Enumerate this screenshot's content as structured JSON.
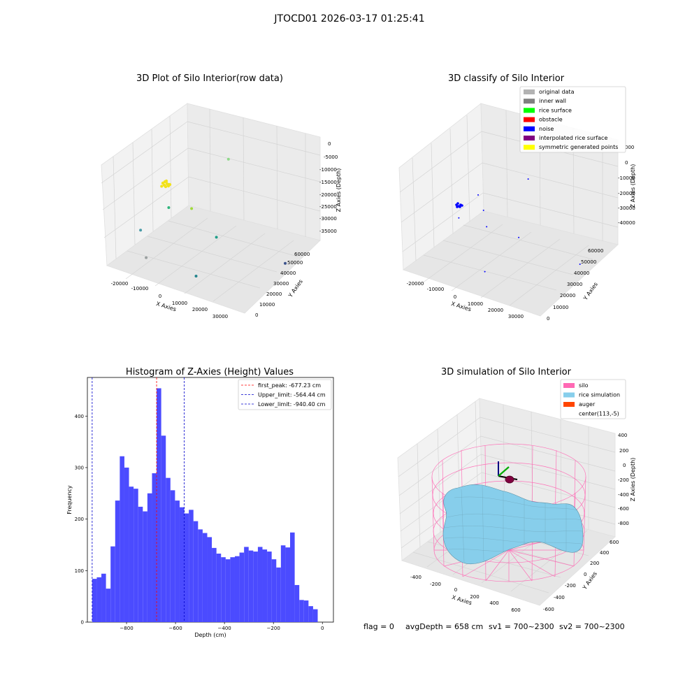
{
  "figure": {
    "suptitle": "JTOCD01 2026-03-17 01:25:41",
    "footer": {
      "flag": "flag = 0",
      "avg_depth": "avgDepth = 658 cm",
      "sv1": "sv1 = 700~2300",
      "sv2": "sv2 = 700~2300"
    }
  },
  "colors": {
    "hist_bar": "#4b4bff",
    "first_peak": "#ff0000",
    "limits": "#0000cc",
    "original_data": "#b3b3b3",
    "inner_wall": "#808080",
    "rice_surface": "#00ff00",
    "obstacle": "#ff0000",
    "noise": "#0000ff",
    "interpolated_rice_surface": "#800080",
    "symmetric_generated_points": "#ffff00",
    "silo": "#ff69b4",
    "rice_simulation": "#87ceeb",
    "auger": "#ff4500"
  },
  "chart_data": [
    {
      "id": "raw3d",
      "type": "scatter",
      "projection": "3d",
      "title": "3D Plot of Silo Interior(row data)",
      "xlabel": "X Axies",
      "ylabel": "Y Axies",
      "zlabel": "Z Axies (Depth)",
      "xlim": [
        -25000,
        35000
      ],
      "ylim": [
        0,
        65000
      ],
      "zlim": [
        -37000,
        1000
      ],
      "x_ticks": [
        "-20000",
        "-10000",
        "0",
        "10000",
        "20000",
        "30000"
      ],
      "y_ticks": [
        "0",
        "10000",
        "20000",
        "30000",
        "40000",
        "50000",
        "60000"
      ],
      "z_ticks": [
        "0",
        "-5000",
        "-10000",
        "-15000",
        "-20000",
        "-25000",
        "-30000",
        "-35000"
      ],
      "points": [
        {
          "x": -2000,
          "y": 1500,
          "z": -1200,
          "color": "#f2e21c"
        },
        {
          "x": 6000,
          "y": 40000,
          "z": -2000,
          "color": "#8fd98a"
        },
        {
          "x": -9000,
          "y": 20000,
          "z": -9000,
          "color": "#5ec962"
        },
        {
          "x": -3000,
          "y": 9000,
          "z": -12000,
          "color": "#2fb47c"
        },
        {
          "x": 2000,
          "y": 18000,
          "z": -14000,
          "color": "#9fda3a"
        },
        {
          "x": -12000,
          "y": 3000,
          "z": -21000,
          "color": "#4a9ca8"
        },
        {
          "x": 9000,
          "y": 25000,
          "z": -25000,
          "color": "#1f9e89"
        },
        {
          "x": -9000,
          "y": 2000,
          "z": -30000,
          "color": "#9aa0a0"
        },
        {
          "x": 28000,
          "y": 45000,
          "z": -36000,
          "color": "#3b528b"
        },
        {
          "x": 10000,
          "y": 7000,
          "z": -33000,
          "color": "#25858e"
        }
      ]
    },
    {
      "id": "class3d",
      "type": "scatter",
      "projection": "3d",
      "title": "3D classify of Silo Interior",
      "xlabel": "X Axies",
      "ylabel": "Y Axies",
      "zlabel": "Z Axies (Depth)",
      "xlim": [
        -25000,
        35000
      ],
      "ylim": [
        0,
        65000
      ],
      "zlim": [
        -45000,
        10000
      ],
      "x_ticks": [
        "-20000",
        "-10000",
        "0",
        "10000",
        "20000",
        "30000"
      ],
      "y_ticks": [
        "0",
        "10000",
        "20000",
        "30000",
        "40000",
        "50000",
        "60000"
      ],
      "z_ticks": [
        "0",
        "-10000",
        "-20000",
        "-30000",
        "-40000"
      ],
      "z_ticks_clipped": [
        "000"
      ],
      "legend_loc": "top-right",
      "legend": [
        {
          "label": "original data",
          "color": "#b3b3b3"
        },
        {
          "label": "inner wall",
          "color": "#808080"
        },
        {
          "label": "rice surface",
          "color": "#00ff00"
        },
        {
          "label": "obstacle",
          "color": "#ff0000"
        },
        {
          "label": "noise",
          "color": "#0000ff"
        },
        {
          "label": "interpolated rice surface",
          "color": "#800080"
        },
        {
          "label": "symmetric generated points",
          "color": "#ffff00"
        }
      ],
      "points": [
        {
          "x": -1500,
          "y": 1500,
          "z": -9000,
          "color": "#0000ff"
        },
        {
          "x": 8000,
          "y": 40000,
          "z": -3000,
          "color": "#0000ff"
        },
        {
          "x": -2000,
          "y": 18000,
          "z": -5000,
          "color": "#0000ff"
        },
        {
          "x": 2000,
          "y": 15000,
          "z": -10000,
          "color": "#0000ff"
        },
        {
          "x": 5000,
          "y": 12000,
          "z": -16000,
          "color": "#0000ff"
        },
        {
          "x": 12000,
          "y": 25000,
          "z": -25000,
          "color": "#0000ff"
        },
        {
          "x": 28000,
          "y": 45000,
          "z": -42000,
          "color": "#0000ff"
        },
        {
          "x": 8000,
          "y": 5000,
          "z": -35000,
          "color": "#0000ff"
        }
      ]
    },
    {
      "id": "hist",
      "type": "bar",
      "title": "Histogram of Z-Axies (Height) Values",
      "xlabel": "Depth (cm)",
      "ylabel": "Frequency",
      "xlim": [
        -960,
        45
      ],
      "ylim": [
        0,
        475
      ],
      "x_ticks": [
        -800,
        -600,
        -400,
        -200,
        0
      ],
      "y_ticks": [
        0,
        100,
        200,
        300,
        400
      ],
      "bin_start": -940.4,
      "bin_width": 18.8,
      "values": [
        84,
        87,
        94,
        65,
        147,
        236,
        322,
        300,
        263,
        259,
        224,
        215,
        250,
        289,
        454,
        362,
        280,
        256,
        236,
        223,
        211,
        218,
        196,
        180,
        173,
        165,
        144,
        133,
        126,
        122,
        126,
        128,
        135,
        146,
        139,
        137,
        146,
        141,
        137,
        122,
        106,
        149,
        145,
        174,
        72,
        43,
        42,
        31,
        25
      ],
      "lines": [
        {
          "label": "first_peak: -677.23 cm",
          "x": -677.23,
          "color": "#ff0000"
        },
        {
          "label": "Upper_limit: -564.44 cm",
          "x": -564.44,
          "color": "#0000cc"
        },
        {
          "label": "Lower_limit: -940.40 cm",
          "x": -940.4,
          "color": "#0000cc"
        }
      ],
      "legend_loc": "top-right"
    },
    {
      "id": "sim3d",
      "type": "surface",
      "projection": "3d",
      "title": "3D simulation of Silo Interior",
      "xlabel": "X Axies",
      "ylabel": "Y Axies",
      "zlabel": "Z Axies (Depth)",
      "xlim": [
        -500,
        750
      ],
      "ylim": [
        -700,
        700
      ],
      "zlim": [
        -1000,
        500
      ],
      "x_ticks": [
        "-400",
        "-200",
        "0",
        "200",
        "400",
        "600"
      ],
      "y_ticks": [
        "-600",
        "-400",
        "-200",
        "0",
        "200",
        "400",
        "600"
      ],
      "z_ticks": [
        "400",
        "200",
        "0",
        "-200",
        "-400",
        "-600",
        "-800"
      ],
      "legend_loc": "top-right",
      "legend": [
        {
          "label": "silo",
          "color": "#ff69b4"
        },
        {
          "label": "rice simulation",
          "color": "#87ceeb"
        },
        {
          "label": "auger",
          "color": "#ff4500"
        },
        {
          "label": "center(113,-5)",
          "color": ""
        }
      ]
    }
  ]
}
